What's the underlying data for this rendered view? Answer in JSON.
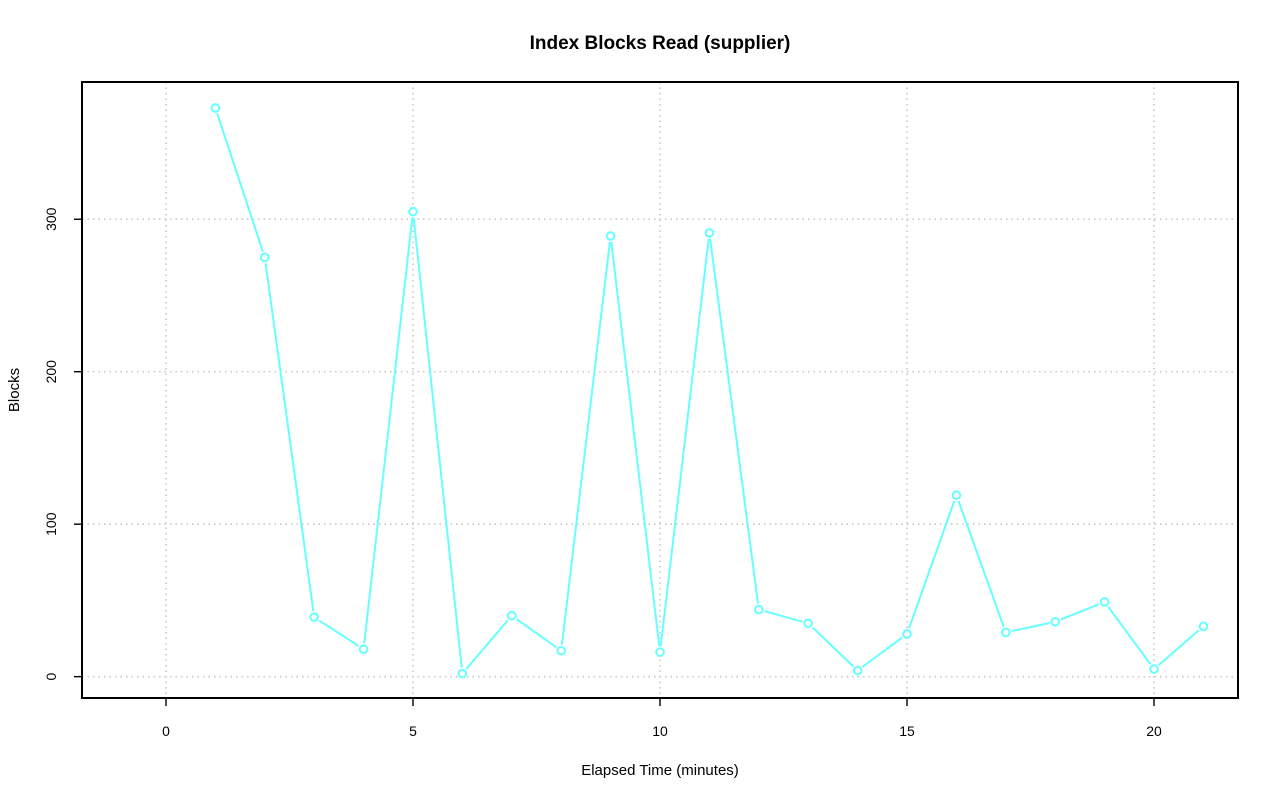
{
  "chart_data": {
    "type": "line",
    "title": "Index Blocks Read (supplier)",
    "xlabel": "Elapsed Time (minutes)",
    "ylabel": "Blocks",
    "xlim": [
      -1.7,
      21.7
    ],
    "ylim": [
      -14,
      390
    ],
    "x_ticks": [
      0,
      5,
      10,
      15,
      20
    ],
    "y_ticks": [
      0,
      100,
      200,
      300
    ],
    "grid": true,
    "legend": "none",
    "series_color": "#66ffff",
    "x": [
      1,
      2,
      3,
      4,
      5,
      6,
      7,
      8,
      9,
      10,
      11,
      12,
      13,
      14,
      15,
      16,
      17,
      18,
      19,
      20,
      21
    ],
    "series": [
      {
        "values": [
          373,
          275,
          39,
          18,
          305,
          2,
          40,
          17,
          289,
          16,
          291,
          44,
          35,
          4,
          28,
          119,
          29,
          36,
          49,
          5,
          33
        ]
      }
    ]
  }
}
